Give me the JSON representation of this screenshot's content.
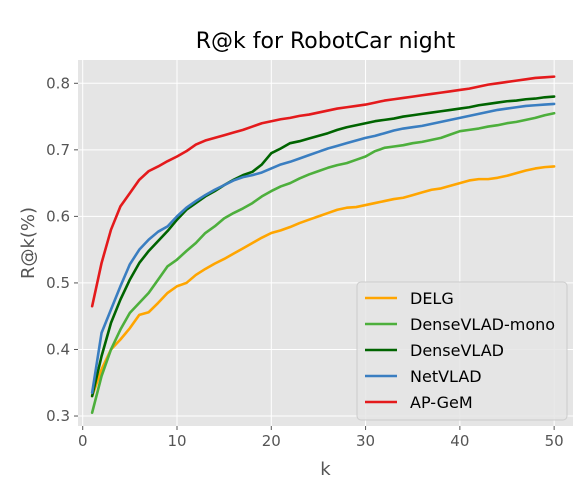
{
  "chart_data": {
    "type": "line",
    "title": "R@k for RobotCar night",
    "xlabel": "k",
    "ylabel": "R@k(%)",
    "xlim": [
      -0.5,
      52
    ],
    "ylim": [
      0.285,
      0.835
    ],
    "xticks": [
      0,
      10,
      20,
      30,
      40,
      50
    ],
    "yticks": [
      0.3,
      0.4,
      0.5,
      0.6,
      0.7,
      0.8
    ],
    "grid": true,
    "legend_position": "lower-right",
    "series": [
      {
        "name": "DELG",
        "color": "#FFA500",
        "x": [
          1,
          2,
          3,
          4,
          5,
          6,
          7,
          8,
          9,
          10,
          11,
          12,
          13,
          14,
          15,
          16,
          17,
          18,
          19,
          20,
          21,
          22,
          23,
          24,
          25,
          26,
          27,
          28,
          29,
          30,
          31,
          32,
          33,
          34,
          35,
          36,
          37,
          38,
          39,
          40,
          41,
          42,
          43,
          44,
          45,
          46,
          47,
          48,
          49,
          50
        ],
        "y": [
          0.33,
          0.37,
          0.4,
          0.415,
          0.432,
          0.452,
          0.456,
          0.47,
          0.485,
          0.495,
          0.5,
          0.512,
          0.521,
          0.529,
          0.536,
          0.544,
          0.552,
          0.56,
          0.568,
          0.575,
          0.579,
          0.584,
          0.59,
          0.595,
          0.6,
          0.605,
          0.61,
          0.613,
          0.614,
          0.617,
          0.62,
          0.623,
          0.626,
          0.628,
          0.632,
          0.636,
          0.64,
          0.642,
          0.646,
          0.65,
          0.654,
          0.656,
          0.656,
          0.658,
          0.661,
          0.665,
          0.669,
          0.672,
          0.674,
          0.675
        ]
      },
      {
        "name": "DenseVLAD-mono",
        "color": "#4DAF3C",
        "x": [
          1,
          2,
          3,
          4,
          5,
          6,
          7,
          8,
          9,
          10,
          11,
          12,
          13,
          14,
          15,
          16,
          17,
          18,
          19,
          20,
          21,
          22,
          23,
          24,
          25,
          26,
          27,
          28,
          29,
          30,
          31,
          32,
          33,
          34,
          35,
          36,
          37,
          38,
          39,
          40,
          41,
          42,
          43,
          44,
          45,
          46,
          47,
          48,
          49,
          50
        ],
        "y": [
          0.305,
          0.36,
          0.4,
          0.43,
          0.455,
          0.47,
          0.485,
          0.505,
          0.525,
          0.535,
          0.548,
          0.56,
          0.575,
          0.585,
          0.597,
          0.605,
          0.612,
          0.62,
          0.63,
          0.638,
          0.645,
          0.65,
          0.657,
          0.663,
          0.668,
          0.673,
          0.677,
          0.68,
          0.685,
          0.69,
          0.698,
          0.703,
          0.705,
          0.707,
          0.71,
          0.712,
          0.715,
          0.718,
          0.723,
          0.728,
          0.73,
          0.732,
          0.735,
          0.737,
          0.74,
          0.742,
          0.745,
          0.748,
          0.752,
          0.755
        ]
      },
      {
        "name": "DenseVLAD",
        "color": "#006400",
        "x": [
          1,
          2,
          3,
          4,
          5,
          6,
          7,
          8,
          9,
          10,
          11,
          12,
          13,
          14,
          15,
          16,
          17,
          18,
          19,
          20,
          21,
          22,
          23,
          24,
          25,
          26,
          27,
          28,
          29,
          30,
          31,
          32,
          33,
          34,
          35,
          36,
          37,
          38,
          39,
          40,
          41,
          42,
          43,
          44,
          45,
          46,
          47,
          48,
          49,
          50
        ],
        "y": [
          0.33,
          0.39,
          0.44,
          0.475,
          0.505,
          0.53,
          0.548,
          0.563,
          0.578,
          0.595,
          0.61,
          0.62,
          0.63,
          0.638,
          0.647,
          0.655,
          0.662,
          0.667,
          0.678,
          0.695,
          0.702,
          0.71,
          0.713,
          0.717,
          0.721,
          0.725,
          0.73,
          0.734,
          0.737,
          0.74,
          0.743,
          0.745,
          0.747,
          0.75,
          0.752,
          0.754,
          0.756,
          0.758,
          0.76,
          0.762,
          0.764,
          0.767,
          0.769,
          0.771,
          0.773,
          0.774,
          0.776,
          0.777,
          0.779,
          0.78
        ]
      },
      {
        "name": "NetVLAD",
        "color": "#3A7EC1",
        "x": [
          1,
          2,
          3,
          4,
          5,
          6,
          7,
          8,
          9,
          10,
          11,
          12,
          13,
          14,
          15,
          16,
          17,
          18,
          19,
          20,
          21,
          22,
          23,
          24,
          25,
          26,
          27,
          28,
          29,
          30,
          31,
          32,
          33,
          34,
          35,
          36,
          37,
          38,
          39,
          40,
          41,
          42,
          43,
          44,
          45,
          46,
          47,
          48,
          49,
          50
        ],
        "y": [
          0.335,
          0.425,
          0.46,
          0.495,
          0.528,
          0.55,
          0.565,
          0.577,
          0.585,
          0.6,
          0.613,
          0.623,
          0.632,
          0.64,
          0.647,
          0.654,
          0.659,
          0.662,
          0.666,
          0.672,
          0.678,
          0.682,
          0.687,
          0.692,
          0.697,
          0.702,
          0.706,
          0.71,
          0.714,
          0.718,
          0.721,
          0.725,
          0.729,
          0.732,
          0.734,
          0.736,
          0.739,
          0.742,
          0.745,
          0.748,
          0.751,
          0.754,
          0.757,
          0.76,
          0.762,
          0.764,
          0.766,
          0.767,
          0.768,
          0.769
        ]
      },
      {
        "name": "AP-GeM",
        "color": "#E41A1C",
        "x": [
          1,
          2,
          3,
          4,
          5,
          6,
          7,
          8,
          9,
          10,
          11,
          12,
          13,
          14,
          15,
          16,
          17,
          18,
          19,
          20,
          21,
          22,
          23,
          24,
          25,
          26,
          27,
          28,
          29,
          30,
          31,
          32,
          33,
          34,
          35,
          36,
          37,
          38,
          39,
          40,
          41,
          42,
          43,
          44,
          45,
          46,
          47,
          48,
          49,
          50
        ],
        "y": [
          0.465,
          0.53,
          0.58,
          0.615,
          0.635,
          0.655,
          0.668,
          0.675,
          0.683,
          0.69,
          0.698,
          0.708,
          0.714,
          0.718,
          0.722,
          0.726,
          0.73,
          0.735,
          0.74,
          0.743,
          0.746,
          0.748,
          0.751,
          0.753,
          0.756,
          0.759,
          0.762,
          0.764,
          0.766,
          0.768,
          0.771,
          0.774,
          0.776,
          0.778,
          0.78,
          0.782,
          0.784,
          0.786,
          0.788,
          0.79,
          0.792,
          0.795,
          0.798,
          0.8,
          0.802,
          0.804,
          0.806,
          0.808,
          0.809,
          0.81
        ]
      }
    ]
  }
}
